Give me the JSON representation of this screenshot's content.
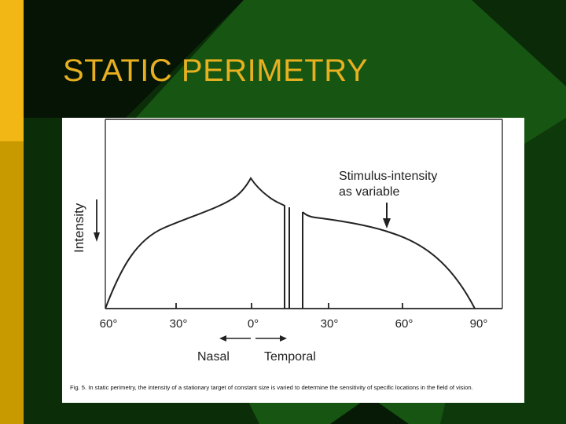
{
  "slide": {
    "title": "STATIC PERIMETRY",
    "colors": {
      "title": "#e8b020",
      "left_band": "#f2b715",
      "left_band_dark": "#c99a00",
      "bg_green": "#155410",
      "bg_dark": "#061806"
    }
  },
  "figure": {
    "y_axis_label": "Intensity",
    "annotation": [
      "Stimulus-intensity",
      "as variable"
    ],
    "x_ticks": [
      "60°",
      "30°",
      "0°",
      "30°",
      "60°",
      "90°"
    ],
    "nasal_label": "Nasal",
    "temporal_label": "Temporal",
    "caption": "Fig. 5. In static perimetry, the intensity of a stationary target of constant size is varied to determine the sensitivity of specific locations in the field of vision."
  }
}
